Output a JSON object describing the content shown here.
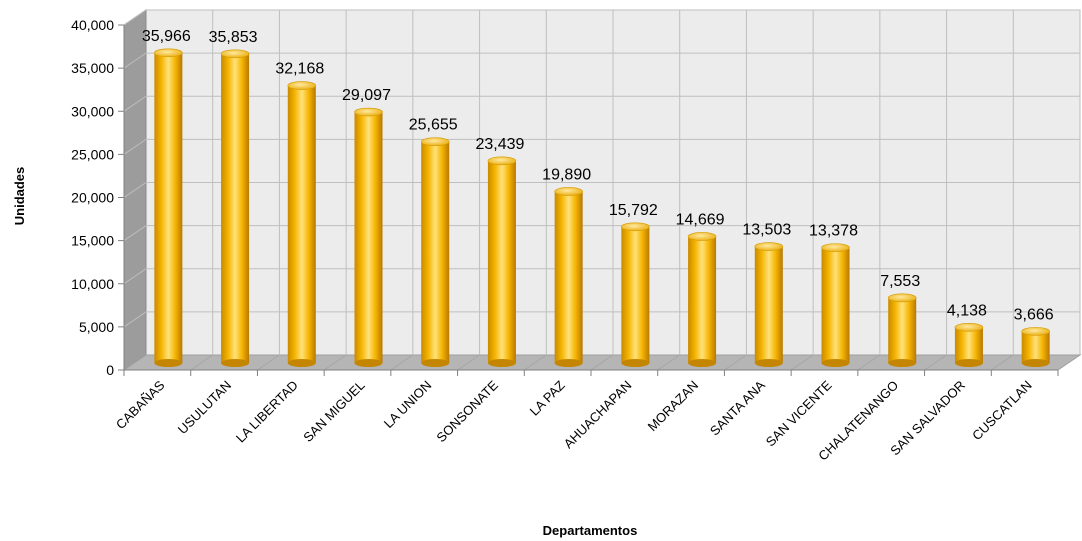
{
  "chart_data": {
    "type": "bar",
    "title": "",
    "xlabel": "Departamentos",
    "ylabel": "Unidades",
    "ylim": [
      0,
      40000
    ],
    "yticks": [
      "0",
      "5,000",
      "10,000",
      "15,000",
      "20,000",
      "25,000",
      "30,000",
      "35,000",
      "40,000"
    ],
    "grid": true,
    "legend": "none",
    "bar_color": "#F5B400",
    "categories": [
      "CABAÑAS",
      "USULUTAN",
      "LA LIBERTAD",
      "SAN MIGUEL",
      "LA UNION",
      "SONSONATE",
      "LA PAZ",
      "AHUACHAPAN",
      "MORAZAN",
      "SANTA ANA",
      "SAN VICENTE",
      "CHALATENANGO",
      "SAN SALVADOR",
      "CUSCATLAN"
    ],
    "values": [
      35966,
      35853,
      32168,
      29097,
      25655,
      23439,
      19890,
      15792,
      14669,
      13503,
      13378,
      7553,
      4138,
      3666
    ],
    "data_labels": [
      "35,966",
      "35,853",
      "32,168",
      "29,097",
      "25,655",
      "23,439",
      "19,890",
      "15,792",
      "14,669",
      "13,503",
      "13,378",
      "7,553",
      "4,138",
      "3,666"
    ]
  }
}
